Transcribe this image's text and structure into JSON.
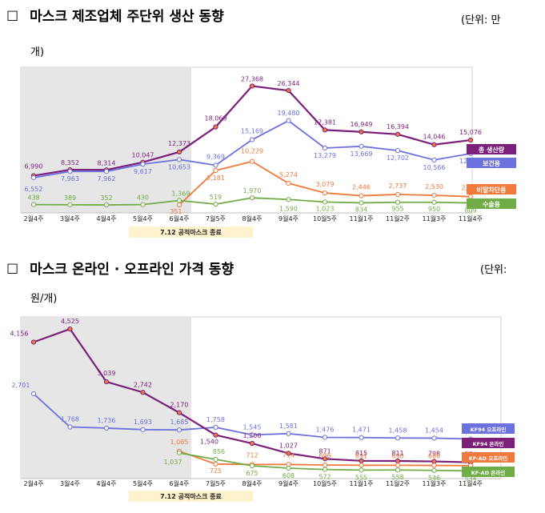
{
  "heading1": {
    "box": "☐",
    "title": "마스크 제조업체 주단위 생산 동향",
    "unit_a": "(단위: 만",
    "unit_b": "개)"
  },
  "heading2": {
    "box": "☐",
    "title": "마스크 온라인 · 오프라인 가격 동향",
    "unit_a": "(단위:",
    "unit_b": "원/개)"
  },
  "colors": {
    "purple": "#7b1f7b",
    "blue": "#6b72dd",
    "orange": "#f07a3c",
    "green": "#70ad47"
  },
  "chart_data": [
    {
      "type": "line",
      "categories": [
        "2월4주",
        "3월4주",
        "4월4주",
        "5월4주",
        "6월4주",
        "7월5주",
        "8월4주",
        "9월4주",
        "10월5주",
        "11월1주",
        "11월2주",
        "11월3주",
        "11월4주"
      ],
      "annotation": "7.12 공적마스크 종료",
      "series": [
        {
          "name": "총 생산량",
          "color": "#7b1f7b",
          "values": [
            6990,
            8352,
            8314,
            10047,
            12373,
            18069,
            27368,
            26344,
            17381,
            16949,
            16394,
            14046,
            15076
          ],
          "labels": [
            "6,990",
            "8,352",
            "8,314",
            "10,047",
            "12,373",
            "18,069",
            "27,368",
            "26,344",
            "17,381",
            "16,949",
            "16,394",
            "14,046",
            "15,076"
          ]
        },
        {
          "name": "보건용",
          "color": "#6b72dd",
          "values": [
            6552,
            7963,
            7962,
            9617,
            10653,
            9369,
            15169,
            19480,
            13279,
            13669,
            12702,
            10566,
            12027
          ],
          "labels": [
            "6,552",
            "7,963",
            "7,962",
            "9,617",
            "10,653",
            "9,369",
            "15,169",
            "19,480",
            "13,279",
            "13,669",
            "12,702",
            "10,566",
            "12,027"
          ]
        },
        {
          "name": "비말차단용",
          "color": "#f07a3c",
          "values": [
            null,
            null,
            null,
            null,
            351,
            8181,
            10229,
            5274,
            3079,
            2446,
            2737,
            2530,
            2240
          ],
          "labels": [
            "",
            "",
            "",
            "",
            "351",
            "8,181",
            "10,229",
            "5,274",
            "3,079",
            "2,446",
            "2,737",
            "2,530",
            "2,240"
          ]
        },
        {
          "name": "수술용",
          "color": "#70ad47",
          "values": [
            438,
            389,
            352,
            430,
            1369,
            519,
            1970,
            1590,
            1023,
            834,
            955,
            950,
            809
          ],
          "labels": [
            "438",
            "389",
            "352",
            "430",
            "1,369",
            "519",
            "1,970",
            "1,590",
            "1,023",
            "834",
            "955",
            "950",
            "809"
          ]
        }
      ]
    },
    {
      "type": "line",
      "categories": [
        "2월4주",
        "3월4주",
        "4월4주",
        "5월4주",
        "6월4주",
        "7월5주",
        "8월4주",
        "9월4주",
        "10월5주",
        "11월1주",
        "11월2주",
        "11월3주",
        "11월4주"
      ],
      "annotation": "7.12 공적마스크 종료",
      "series": [
        {
          "name": "KF94 오프라인",
          "color": "#6b72dd",
          "values": [
            2701,
            1768,
            1736,
            1693,
            1685,
            1758,
            1545,
            1581,
            1476,
            1471,
            1458,
            1454,
            1431
          ],
          "labels": [
            "2,701",
            "1,768",
            "1,736",
            "1,693",
            "1,685",
            "1,758",
            "1,545",
            "1,581",
            "1,476",
            "1,471",
            "1,458",
            "1,454",
            "1,431"
          ]
        },
        {
          "name": "KF94 온라인",
          "color": "#7b1f7b",
          "values": [
            4156,
            4525,
            3039,
            2742,
            2170,
            1540,
            1306,
            1027,
            871,
            815,
            811,
            798,
            774
          ],
          "labels": [
            "4,156",
            "4,525",
            "3,039",
            "2,742",
            "2,170",
            "1,540",
            "1,306",
            "1,027",
            "871",
            "815",
            "811",
            "798",
            "774"
          ]
        },
        {
          "name": "KF-AD 오프라인",
          "color": "#f07a3c",
          "values": [
            null,
            null,
            null,
            null,
            1085,
            725,
            712,
            714,
            696,
            691,
            690,
            686,
            678
          ],
          "labels": [
            "",
            "",
            "",
            "",
            "1,085",
            "725",
            "712",
            "714",
            "696",
            "691",
            "690",
            "686",
            "678"
          ]
        },
        {
          "name": "KF-AD 온라인",
          "color": "#70ad47",
          "values": [
            null,
            null,
            null,
            null,
            1037,
            856,
            675,
            608,
            572,
            555,
            558,
            546,
            534
          ],
          "labels": [
            "",
            "",
            "",
            "",
            "1,037",
            "856",
            "675",
            "608",
            "572",
            "555",
            "558",
            "546",
            "534"
          ]
        }
      ]
    }
  ]
}
